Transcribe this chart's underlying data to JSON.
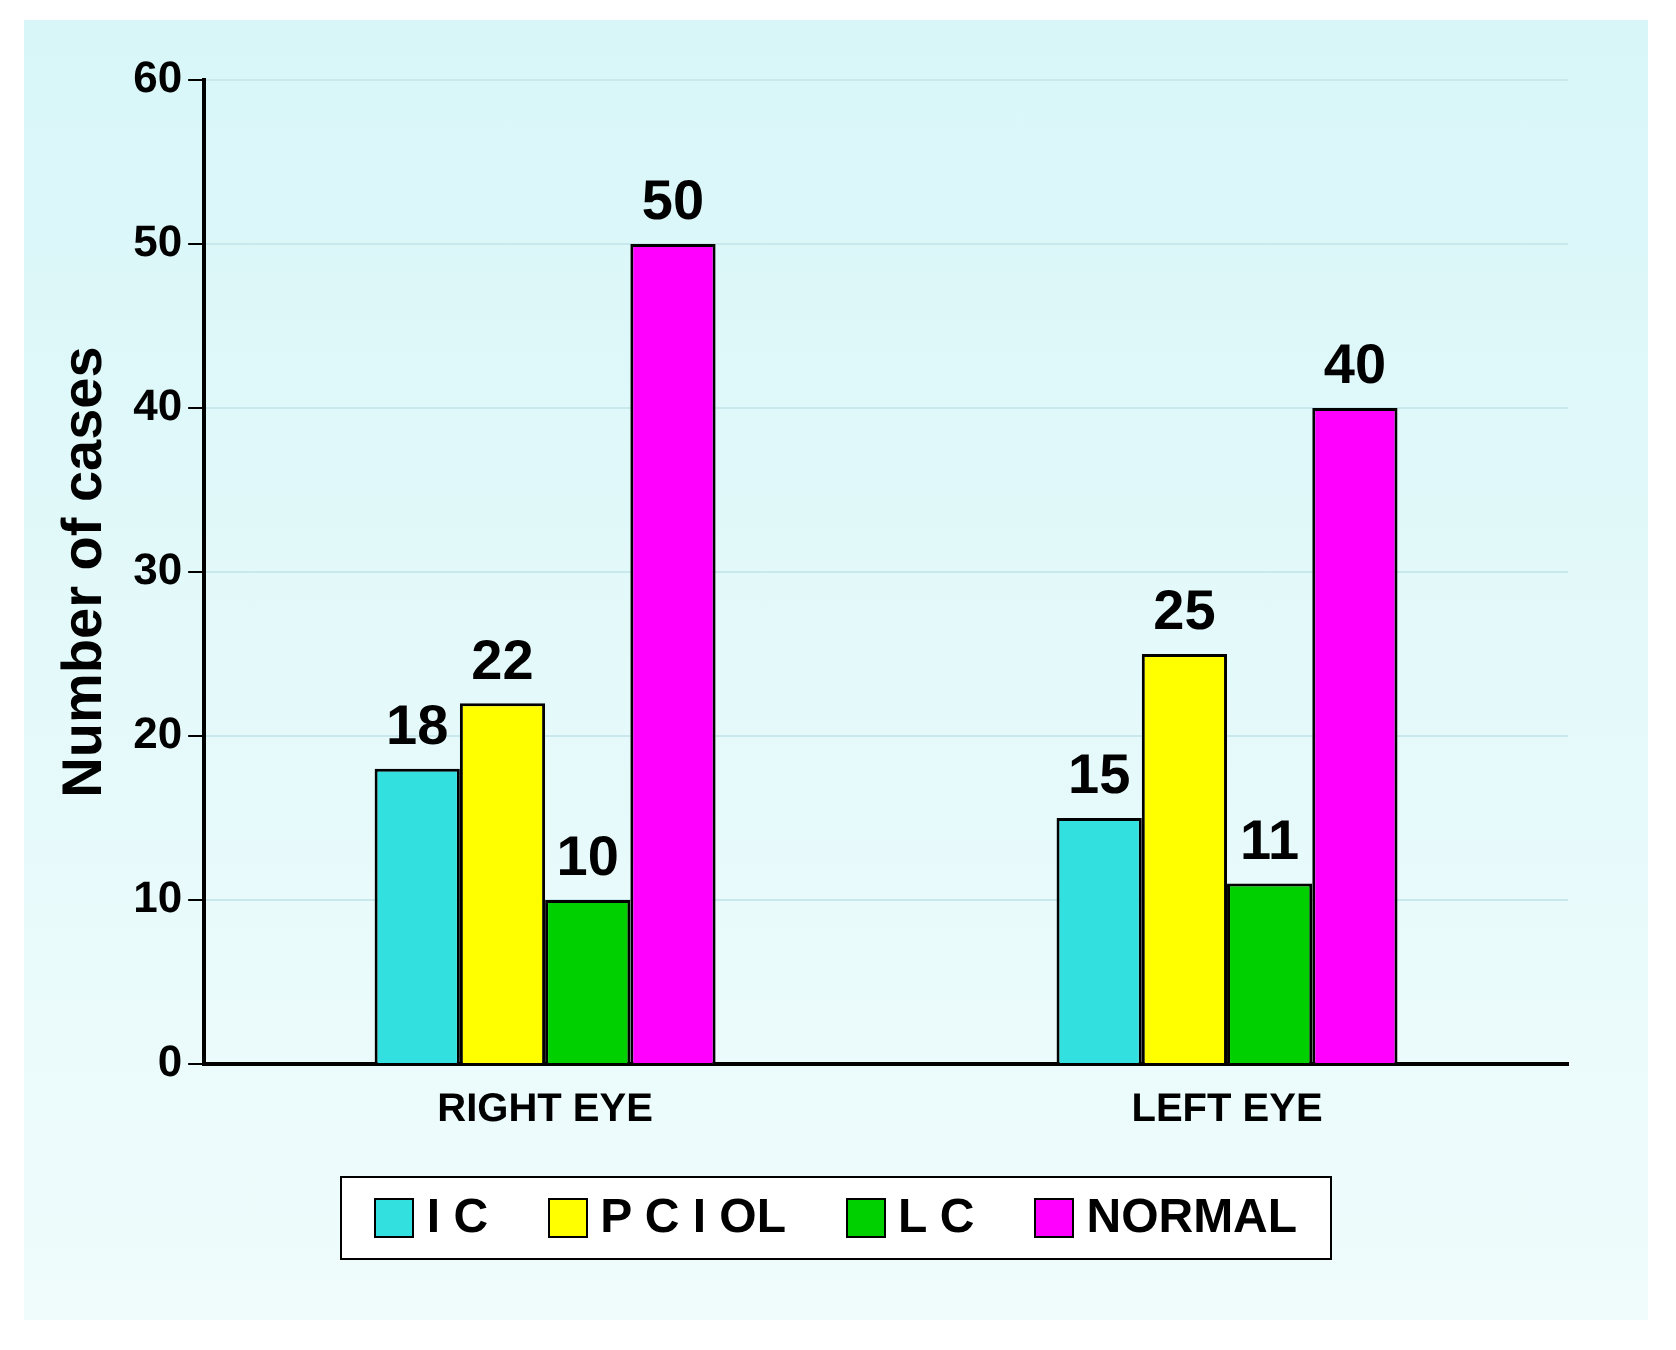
{
  "chart_data": {
    "type": "bar",
    "ylabel": "Number of cases",
    "categories": [
      "RIGHT EYE",
      "LEFT EYE"
    ],
    "series": [
      {
        "name": "I C",
        "color": "#33e0e0",
        "values": [
          18,
          15
        ]
      },
      {
        "name": "P C I OL",
        "color": "#ffff00",
        "values": [
          22,
          25
        ]
      },
      {
        "name": "L C",
        "color": "#00d000",
        "values": [
          10,
          11
        ]
      },
      {
        "name": "NORMAL",
        "color": "#ff00ff",
        "values": [
          50,
          40
        ]
      }
    ],
    "ylim": [
      0,
      60
    ],
    "yticks": [
      0,
      10,
      20,
      30,
      40,
      50,
      60
    ],
    "grid": "y",
    "legend": "bottom",
    "data_labels": true
  }
}
